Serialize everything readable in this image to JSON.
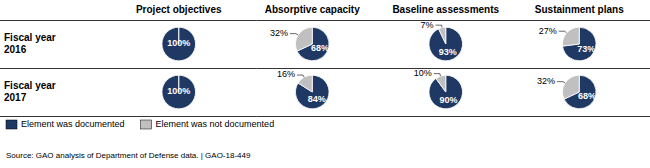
{
  "chart_data": {
    "type": "pie",
    "columns": [
      "Project objectives",
      "Absorptive capacity",
      "Baseline assessments",
      "Sustainment plans"
    ],
    "rows": [
      "Fiscal year\n2016",
      "Fiscal year\n2017"
    ],
    "series": [
      {
        "name": "Element was documented",
        "color": "#1F3864",
        "values": [
          [
            100,
            68,
            93,
            73
          ],
          [
            100,
            84,
            90,
            68
          ]
        ],
        "value_labels": [
          [
            "100%",
            "68%",
            "93%",
            "73%"
          ],
          [
            "100%",
            "84%",
            "90%",
            "68%"
          ]
        ]
      },
      {
        "name": "Element was not documented",
        "color": "#C0C0C0",
        "values": [
          [
            0,
            32,
            7,
            27
          ],
          [
            0,
            16,
            10,
            32
          ]
        ],
        "value_labels": [
          [
            null,
            "32%",
            "7%",
            "27%"
          ],
          [
            null,
            "16%",
            "10%",
            "32%"
          ]
        ]
      }
    ],
    "data_labels": true,
    "legend": "lower left",
    "annotations": [
      "Source: GAO analysis of Department of Defense data.  |  GAO-18-449"
    ]
  }
}
